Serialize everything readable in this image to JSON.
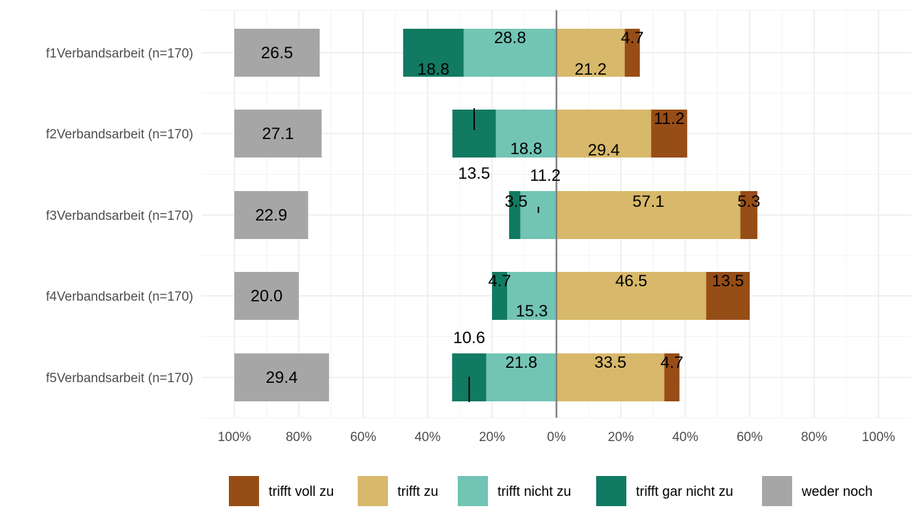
{
  "chart_data": {
    "type": "bar",
    "orientation": "horizontal",
    "stacking": "diverging",
    "categories": [
      "f1Verbandsarbeit (n=170)",
      "f2Verbandsarbeit (n=170)",
      "f3Verbandsarbeit (n=170)",
      "f4Verbandsarbeit (n=170)",
      "f5Verbandsarbeit (n=170)"
    ],
    "series": [
      {
        "name": "trifft voll zu",
        "side": "positive",
        "order": 2,
        "color": "#974d16",
        "values": [
          4.7,
          11.2,
          5.3,
          13.5,
          4.7
        ]
      },
      {
        "name": "trifft zu",
        "side": "positive",
        "order": 1,
        "color": "#d8b86a",
        "values": [
          21.2,
          29.4,
          57.1,
          46.5,
          33.5
        ]
      },
      {
        "name": "trifft nicht zu",
        "side": "negative",
        "order": 1,
        "color": "#72c4b4",
        "values": [
          28.8,
          18.8,
          11.2,
          15.3,
          21.8
        ]
      },
      {
        "name": "trifft gar nicht zu",
        "side": "negative",
        "order": 2,
        "color": "#117a62",
        "values": [
          18.8,
          13.5,
          3.5,
          4.7,
          10.6
        ]
      },
      {
        "name": "weder noch",
        "side": "neutral",
        "order": 0,
        "color": "#a6a6a6",
        "values": [
          26.5,
          27.1,
          22.9,
          20.0,
          29.4
        ]
      }
    ],
    "xlim": [
      -100,
      100
    ],
    "x_ticks": [
      -100,
      -80,
      -60,
      -40,
      -20,
      0,
      20,
      40,
      60,
      80,
      100
    ],
    "x_tick_labels": [
      "100%",
      "80%",
      "60%",
      "40%",
      "20%",
      "0%",
      "20%",
      "40%",
      "60%",
      "80%",
      "100%"
    ],
    "title": "",
    "xlabel": "",
    "ylabel": "",
    "grid": true,
    "legend_position": "bottom",
    "legend_order": [
      "trifft voll zu",
      "trifft zu",
      "trifft nicht zu",
      "trifft gar nicht zu",
      "weder noch"
    ],
    "zero_line_color": "#808080"
  }
}
